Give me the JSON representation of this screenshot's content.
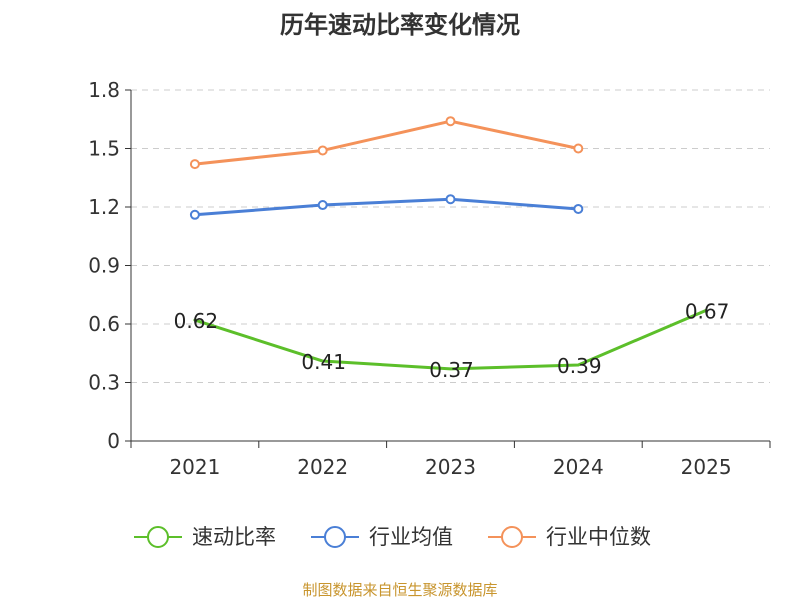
{
  "chart_data": {
    "type": "line",
    "title": "历年速动比率变化情况",
    "categories": [
      "2021",
      "2022",
      "2023",
      "2024",
      "2025"
    ],
    "ylim": [
      0,
      1.8
    ],
    "yticks": [
      "0",
      "0.3",
      "0.6",
      "0.9",
      "1.2",
      "1.5",
      "1.8"
    ],
    "grid": true,
    "legend_position": "bottom-center",
    "series": [
      {
        "name": "速动比率",
        "color": "#5cbf2a",
        "values": [
          0.62,
          0.41,
          0.37,
          0.39,
          0.67
        ],
        "labels": [
          "0.62",
          "0.41",
          "0.37",
          "0.39",
          "0.67"
        ],
        "show_markers": false
      },
      {
        "name": "行业均值",
        "color": "#4a7fd6",
        "values": [
          1.16,
          1.21,
          1.24,
          1.19,
          null
        ],
        "show_markers": true
      },
      {
        "name": "行业中位数",
        "color": "#f4925a",
        "values": [
          1.42,
          1.49,
          1.64,
          1.5,
          null
        ],
        "show_markers": true
      }
    ],
    "source": "制图数据来自恒生聚源数据库"
  }
}
